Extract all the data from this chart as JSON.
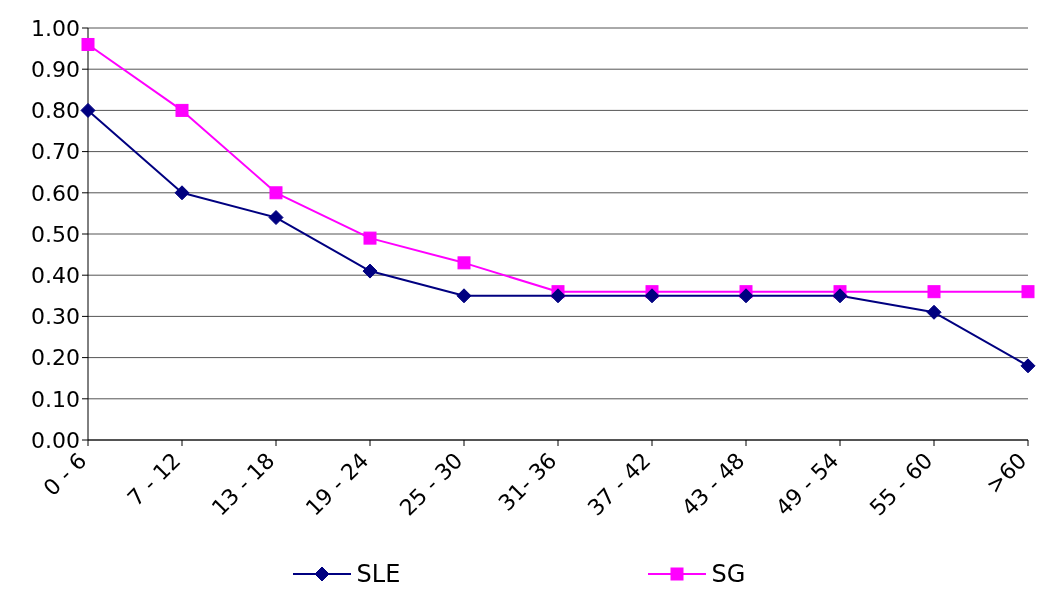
{
  "chart_data": {
    "type": "line",
    "categories": [
      "0 - 6",
      "7 - 12",
      "13 - 18",
      "19 - 24",
      "25 - 30",
      "31- 36",
      "37 - 42",
      "43 - 48",
      "49 - 54",
      "55 - 60",
      ">60"
    ],
    "series": [
      {
        "name": "SLE",
        "color": "#000080",
        "marker": "diamond",
        "values": [
          0.8,
          0.6,
          0.54,
          0.41,
          0.35,
          0.35,
          0.35,
          0.35,
          0.35,
          0.31,
          0.18
        ]
      },
      {
        "name": "SG",
        "color": "#ff00ff",
        "marker": "square",
        "values": [
          0.96,
          0.8,
          0.6,
          0.49,
          0.43,
          0.36,
          0.36,
          0.36,
          0.36,
          0.36,
          0.36
        ]
      }
    ],
    "ylim": [
      0,
      1
    ],
    "yticks": [
      {
        "value": 0,
        "label": "0.00"
      },
      {
        "value": 0.1,
        "label": "0.10"
      },
      {
        "value": 0.2,
        "label": "0.20"
      },
      {
        "value": 0.3,
        "label": "0.30"
      },
      {
        "value": 0.4,
        "label": "0.40"
      },
      {
        "value": 0.5,
        "label": "0.50"
      },
      {
        "value": 0.6,
        "label": "0.60"
      },
      {
        "value": 0.7,
        "label": "0.70"
      },
      {
        "value": 0.8,
        "label": "0.80"
      },
      {
        "value": 0.9,
        "label": "0.90"
      },
      {
        "value": 1,
        "label": "1.00"
      }
    ],
    "grid": "y",
    "legend": "bottom",
    "line_style": "solid"
  }
}
